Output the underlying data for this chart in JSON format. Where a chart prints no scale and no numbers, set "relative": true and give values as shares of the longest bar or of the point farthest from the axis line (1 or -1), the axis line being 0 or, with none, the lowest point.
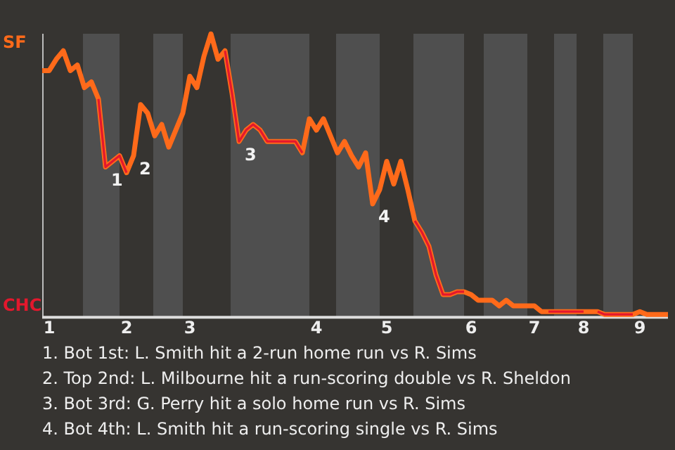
{
  "chart_data": {
    "type": "line",
    "relative": true,
    "categories": [
      null,
      "1",
      null,
      null,
      null,
      null,
      null,
      null,
      null,
      null,
      null,
      null,
      "2",
      null,
      null,
      null,
      null,
      null,
      null,
      null,
      null,
      "3",
      null,
      null,
      null,
      null,
      null,
      null,
      null,
      null,
      null,
      null,
      null,
      null,
      null,
      null,
      null,
      null,
      null,
      "4",
      null,
      null,
      null,
      null,
      null,
      null,
      null,
      null,
      null,
      "5",
      null,
      null,
      null,
      null,
      null,
      null,
      null,
      null,
      null,
      null,
      null,
      "6",
      null,
      null,
      null,
      null,
      null,
      null,
      null,
      null,
      "7",
      null,
      null,
      null,
      null,
      null,
      null,
      "8",
      null,
      null,
      null,
      null,
      null,
      null,
      null,
      "9",
      null,
      null,
      null,
      null
    ],
    "series": [
      {
        "color": "#ff6a1a",
        "values": [
          0.87,
          0.87,
          0.91,
          0.94,
          0.87,
          0.89,
          0.81,
          0.83,
          0.77,
          0.53,
          0.55,
          0.57,
          0.51,
          0.57,
          0.75,
          0.72,
          0.64,
          0.68,
          0.6,
          0.66,
          0.72,
          0.85,
          0.81,
          0.92,
          1,
          0.91,
          0.94,
          0.79,
          0.62,
          0.66,
          0.68,
          0.66,
          0.62,
          0.62,
          0.62,
          0.62,
          0.62,
          0.58,
          0.7,
          0.66,
          0.7,
          0.64,
          0.58,
          0.62,
          0.57,
          0.53,
          0.58,
          0.4,
          0.45,
          0.55,
          0.47,
          0.55,
          0.45,
          0.34,
          0.3,
          0.25,
          0.15,
          0.08,
          0.08,
          0.09,
          0.09,
          0.08,
          0.06,
          0.06,
          0.06,
          0.04,
          0.06,
          0.04,
          0.04,
          0.04,
          0.04,
          0.02,
          0.02,
          0.02,
          0.02,
          0.02,
          0.02,
          0.02,
          0.02,
          0.02,
          0.01,
          0.01,
          0.01,
          0.01,
          0.01,
          0.02,
          0.01,
          0.01,
          0.01,
          0.01
        ]
      },
      {
        "color": "#e3182d",
        "values": [
          null,
          null,
          null,
          null,
          null,
          null,
          null,
          null,
          0.77,
          0.53,
          0.55,
          0.57,
          0.51,
          null,
          null,
          null,
          null,
          null,
          null,
          null,
          null,
          null,
          null,
          null,
          null,
          null,
          0.94,
          0.79,
          0.62,
          0.66,
          0.68,
          0.66,
          0.62,
          0.62,
          0.62,
          0.62,
          0.62,
          0.58,
          null,
          null,
          null,
          null,
          null,
          null,
          null,
          null,
          null,
          null,
          null,
          null,
          null,
          null,
          null,
          0.34,
          0.3,
          0.25,
          0.15,
          0.08,
          0.08,
          0.09,
          0.09,
          null,
          null,
          null,
          null,
          null,
          null,
          null,
          null,
          null,
          null,
          null,
          0.02,
          0.02,
          0.02,
          0.02,
          0.02,
          0.02,
          null,
          0.02,
          0.01,
          0.01,
          0.01,
          0.01,
          0.01,
          null,
          null,
          null,
          null,
          null
        ]
      }
    ],
    "marker": "none",
    "line_style": "solid",
    "legend": false,
    "annotations": [
      "SF",
      "CHC",
      "1",
      "2",
      "3",
      "4",
      "1. Bot 1st: L. Smith hit a 2-run home run vs R. Sims",
      "2. Top 2nd: L. Milbourne hit a run-scoring double vs R. Sheldon",
      "3. Bot 3rd: G. Perry hit a solo home run vs R. Sims",
      "4. Bot 4th: L. Smith hit a run-scoring single vs R. Sims"
    ]
  }
}
